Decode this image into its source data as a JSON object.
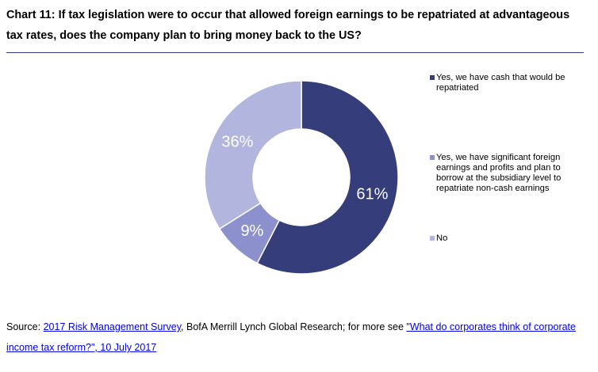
{
  "title": "Chart 11: If tax legislation were to occur that allowed foreign earnings to be repatriated at advantageous tax rates, does the company plan to bring money back to the US?",
  "chart_data": {
    "type": "pie",
    "variant": "donut",
    "labels": [
      "Yes, we have cash that would be repatriated",
      "Yes, we have significant foreign earnings and profits and plan to borrow at the subsidiary level to repatriate non-cash earnings",
      "No"
    ],
    "values": [
      61,
      9,
      36
    ],
    "data_labels": [
      "61%",
      "9%",
      "36%"
    ],
    "colors": [
      "#353d7a",
      "#8c90cc",
      "#b2b5dd"
    ],
    "legend_position": "right"
  },
  "source": {
    "prefix": "Source: ",
    "link1": "2017 Risk Management Survey",
    "middle": ", BofA Merrill Lynch Global Research; for more see ",
    "link2": "\"What do corporates think of corporate income tax reform?\", 10 July 2017"
  }
}
